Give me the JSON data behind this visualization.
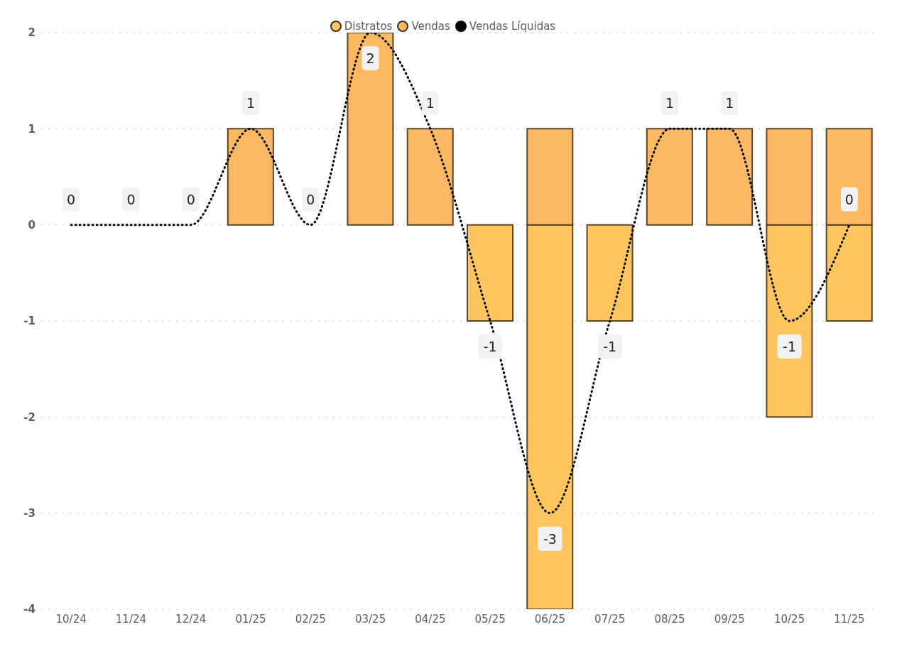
{
  "chart_data": {
    "type": "bar",
    "stacked": true,
    "categories": [
      "10/24",
      "11/24",
      "12/24",
      "01/25",
      "02/25",
      "03/25",
      "04/25",
      "05/25",
      "06/25",
      "07/25",
      "08/25",
      "09/25",
      "10/25",
      "11/25"
    ],
    "series": [
      {
        "name": "Distratos",
        "color": "#ffc660",
        "values": [
          0,
          0,
          0,
          0,
          0,
          0,
          0,
          -1,
          -4,
          -1,
          0,
          0,
          -2,
          -1
        ]
      },
      {
        "name": "Vendas",
        "color": "#fdb863",
        "values": [
          0,
          0,
          0,
          1,
          0,
          2,
          1,
          0,
          1,
          0,
          1,
          1,
          1,
          1
        ]
      },
      {
        "name": "Vendas Líquidas",
        "type": "line",
        "color": "#000000",
        "line_style": "dotted",
        "marker": "none",
        "values": [
          0,
          0,
          0,
          1,
          0,
          2,
          1,
          -1,
          -3,
          -1,
          1,
          1,
          -1,
          0
        ],
        "value_labels": [
          "0",
          "0",
          "0",
          "1",
          "0",
          "2",
          "1",
          "-1",
          "-3",
          "-1",
          "1",
          "1",
          "-1",
          "0"
        ]
      }
    ],
    "ylim": [
      -4,
      2
    ],
    "yticks": [
      -4,
      -3,
      -2,
      -1,
      0,
      1,
      2
    ],
    "grid": "y",
    "legend": "top"
  }
}
